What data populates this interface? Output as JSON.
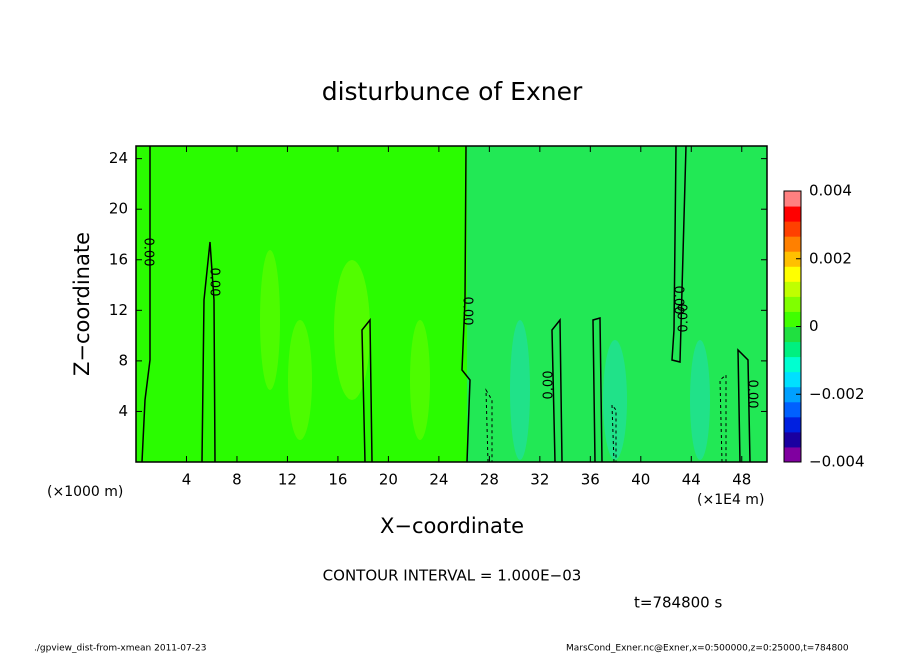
{
  "chart_data": {
    "type": "contour",
    "title": "disturbunce of Exner",
    "x_label": "X−coordinate",
    "y_label": "Z−coordinate",
    "x_unit_left": "(×1000 m)",
    "x_unit_right": "(×1E4 m)",
    "xlim": [
      0,
      50
    ],
    "xticks": [
      4,
      8,
      12,
      16,
      20,
      24,
      28,
      32,
      36,
      40,
      44,
      48
    ],
    "ylim": [
      0,
      25
    ],
    "yticks": [
      4,
      8,
      12,
      16,
      20,
      24
    ],
    "colorbar": {
      "lim": [
        -0.004,
        0.004
      ],
      "ticks": [
        {
          "value": 0.004,
          "label": "0.004"
        },
        {
          "value": 0.002,
          "label": "0.002"
        },
        0,
        {
          "value": -0.002,
          "label": "−0.002"
        },
        {
          "value": -0.004,
          "label": "−0.004"
        }
      ],
      "colors": [
        "#8000a0",
        "#1a00a0",
        "#0020e0",
        "#0060ff",
        "#00a0ff",
        "#00e0ff",
        "#00ffd0",
        "#00f080",
        "#20e040",
        "#40ff00",
        "#80ff00",
        "#c0ff00",
        "#ffff00",
        "#ffc000",
        "#ff8000",
        "#ff4000",
        "#ff0000",
        "#ff8080"
      ]
    },
    "contour_label": "0.00",
    "annotations": [
      "CONTOUR INTERVAL = 1.000E−03",
      "t=784800 s"
    ],
    "footer_left": "./gpview_dist-from-xmean  2011-07-23",
    "footer_right": "MarsCond_Exner.nc@Exner,x=0:500000,z=0:25000,t=784800"
  }
}
